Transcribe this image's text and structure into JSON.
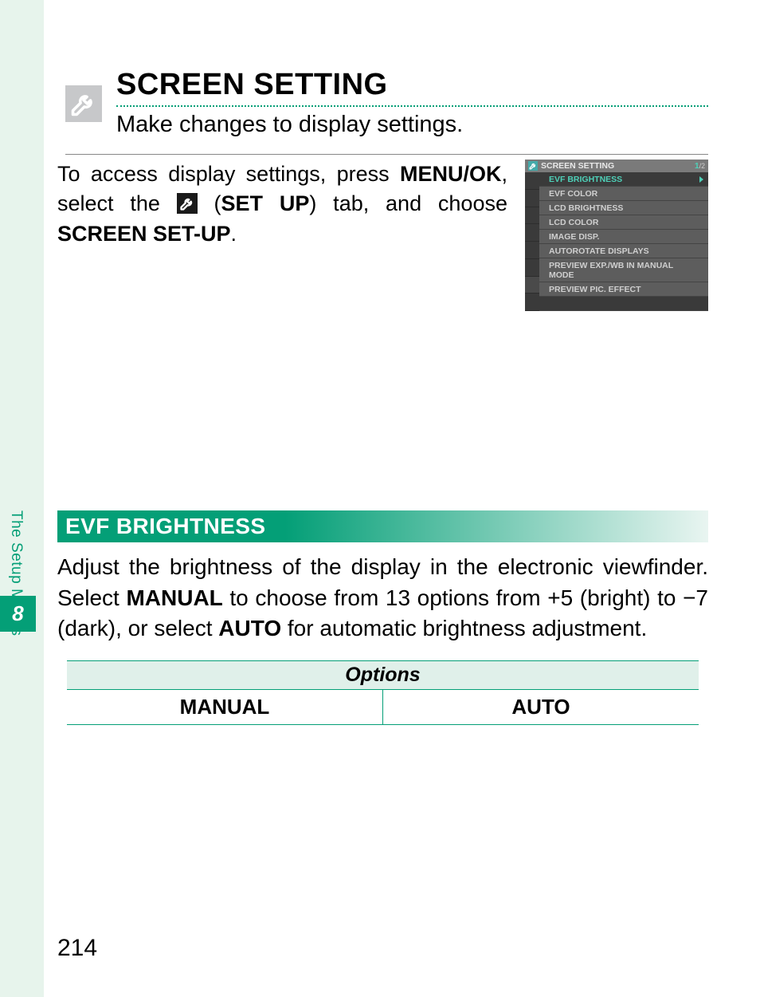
{
  "colors": {
    "accent": "#049f77",
    "strip_bg": "#e7f4ec",
    "lcd_highlight": "#4ed0b8",
    "lcd_row": "#5d5d5d",
    "lcd_dark": "#3a3a3a",
    "lcd_title_bg": "#7a7a7a",
    "icon_box_bg": "#c7c8ca"
  },
  "sidebar": {
    "label": "The Setup Menus",
    "chapter": "8"
  },
  "heading": {
    "title": "SCREEN SETTING",
    "icon": "wrench-icon",
    "subtitle": "Make changes to display settings."
  },
  "intro": {
    "pre": "To access display settings, press ",
    "menu_ok": "MENU/OK",
    "mid1": ", select the ",
    "setup_label": "SET UP",
    "mid2": ") tab, and choose ",
    "screen_setup": "SCREEN SET-UP",
    "tail": "."
  },
  "lcd": {
    "title": "SCREEN SETTING",
    "page": "1",
    "page_total": "/2",
    "items": [
      {
        "label": "EVF BRIGHTNESS",
        "highlight": true,
        "arrow": true
      },
      {
        "label": "EVF COLOR"
      },
      {
        "label": "LCD BRIGHTNESS"
      },
      {
        "label": "LCD COLOR"
      },
      {
        "label": "IMAGE DISP."
      },
      {
        "label": "AUTOROTATE DISPLAYS"
      },
      {
        "label": "PREVIEW EXP./WB IN MANUAL MODE"
      },
      {
        "label": "PREVIEW PIC. EFFECT"
      }
    ]
  },
  "section": {
    "title": "EVF BRIGHTNESS",
    "body_pre": "Adjust the brightness of the display in the electronic viewfinder. Select ",
    "manual": "MANUAL",
    "body_mid": " to choose from 13 options from +5 (bright) to −7 (dark), or select ",
    "auto": "AUTO",
    "body_post": " for automatic brightness adjustment."
  },
  "options": {
    "header": "Options",
    "cells": [
      "MANUAL",
      "AUTO"
    ]
  },
  "page_number": "214"
}
